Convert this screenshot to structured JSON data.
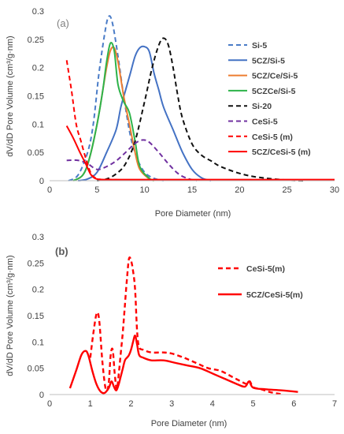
{
  "colors": {
    "si5": "#4a7cc7",
    "cz_si5": "#4472c4",
    "cz_ce_si5": "#ed7d31",
    "czce_si5": "#2db34a",
    "si20": "#111111",
    "cesi5": "#7030a0",
    "red": "#ff0000",
    "axis": "#bfbfbf"
  },
  "chart_data": [
    {
      "type": "line",
      "panel_label": "(a)",
      "xlabel": "Pore Diameter (nm)",
      "ylabel": "dV/dD Pore Volume (cm³/g·nm)",
      "xlim": [
        0,
        30
      ],
      "ylim": [
        0,
        0.3
      ],
      "x_ticks": [
        "0",
        "5",
        "10",
        "15",
        "20",
        "25",
        "30"
      ],
      "y_ticks": [
        "0",
        "0.05",
        "0.1",
        "0.15",
        "0.2",
        "0.25",
        "0.3"
      ],
      "grid": false,
      "legend_position": "right",
      "series": [
        {
          "name": "Si-5",
          "style": "dashed",
          "color_key": "si5",
          "x": [
            2,
            3,
            4,
            4.6,
            5.2,
            5.8,
            6.2,
            6.6,
            7.2,
            7.8,
            8.5,
            9.2,
            10,
            11,
            12
          ],
          "y": [
            0,
            0.01,
            0.05,
            0.1,
            0.19,
            0.26,
            0.29,
            0.28,
            0.22,
            0.15,
            0.08,
            0.04,
            0.015,
            0.004,
            0
          ]
        },
        {
          "name": "5CZ/Si-5",
          "style": "solid",
          "color_key": "cz_si5",
          "x": [
            3,
            4,
            5,
            6,
            7,
            7.5,
            8,
            8.5,
            9,
            9.5,
            10,
            10.5,
            11,
            11.5,
            12,
            13,
            14,
            15,
            16,
            17
          ],
          "y": [
            0,
            0.003,
            0.015,
            0.05,
            0.09,
            0.13,
            0.16,
            0.19,
            0.22,
            0.235,
            0.237,
            0.228,
            0.19,
            0.16,
            0.13,
            0.09,
            0.05,
            0.02,
            0.005,
            0
          ]
        },
        {
          "name": "5CZ/Ce/Si-5",
          "style": "solid",
          "color_key": "cz_ce_si5",
          "x": [
            2.5,
            3.5,
            4.2,
            5,
            5.6,
            6,
            6.4,
            6.8,
            7.2,
            7.8,
            8.4,
            9,
            9.5,
            10.5,
            11
          ],
          "y": [
            0,
            0.01,
            0.04,
            0.1,
            0.16,
            0.2,
            0.23,
            0.235,
            0.21,
            0.15,
            0.1,
            0.05,
            0.02,
            0.003,
            0
          ]
        },
        {
          "name": "5CZCe/Si-5",
          "style": "solid",
          "color_key": "czce_si5",
          "x": [
            2.5,
            3.5,
            4.2,
            5,
            5.6,
            6,
            6.4,
            6.8,
            7.2,
            7.8,
            8.4,
            9,
            9.5,
            10.5,
            11
          ],
          "y": [
            0,
            0.01,
            0.04,
            0.1,
            0.16,
            0.21,
            0.243,
            0.23,
            0.17,
            0.14,
            0.12,
            0.07,
            0.025,
            0.004,
            0
          ]
        },
        {
          "name": "Si-20",
          "style": "dashed",
          "color_key": "si20",
          "x": [
            5,
            6,
            7,
            8,
            9,
            10,
            10.8,
            11.5,
            12,
            12.5,
            13,
            13.5,
            14,
            15,
            16,
            17,
            18,
            20,
            22,
            25,
            27
          ],
          "y": [
            0,
            0.003,
            0.012,
            0.03,
            0.07,
            0.14,
            0.2,
            0.24,
            0.252,
            0.24,
            0.2,
            0.15,
            0.11,
            0.065,
            0.045,
            0.035,
            0.025,
            0.013,
            0.006,
            0.001,
            0
          ]
        },
        {
          "name": "CeSi-5",
          "style": "dashed",
          "color_key": "cesi5",
          "x": [
            1.8,
            3,
            4,
            5,
            6,
            7,
            8,
            9,
            9.8,
            10.5,
            11.5,
            12.5,
            13.5,
            14.5,
            15.5
          ],
          "y": [
            0.036,
            0.036,
            0.03,
            0.02,
            0.025,
            0.035,
            0.05,
            0.066,
            0.072,
            0.068,
            0.05,
            0.03,
            0.013,
            0.004,
            0
          ]
        },
        {
          "name": "CeSi-5 (m)",
          "style": "dashed",
          "color_key": "red",
          "x": [
            1.8,
            2.3,
            2.8,
            3.3,
            3.8,
            4.3,
            4.8,
            5.5,
            6.5,
            8
          ],
          "y": [
            0.213,
            0.16,
            0.1,
            0.07,
            0.04,
            0.015,
            0.005,
            0.002,
            0.002,
            0.001
          ]
        },
        {
          "name": "5CZ/CeSi-5 (m)",
          "style": "solid",
          "color_key": "red",
          "x": [
            1.8,
            2.5,
            3.2,
            3.8,
            4.3,
            4.8,
            5.5,
            7,
            10,
            30
          ],
          "y": [
            0.097,
            0.075,
            0.05,
            0.03,
            0.012,
            0.004,
            0.002,
            0.002,
            0.002,
            0.002
          ]
        }
      ]
    },
    {
      "type": "line",
      "panel_label": "(b)",
      "xlabel": "Pore Diameter (nm)",
      "ylabel": "dV/dD Pore Volume (cm³/g·nm)",
      "xlim": [
        0,
        7
      ],
      "ylim": [
        0,
        0.3
      ],
      "x_ticks": [
        "0",
        "1",
        "2",
        "3",
        "4",
        "5",
        "6",
        "7"
      ],
      "y_ticks": [
        "0",
        "0.05",
        "0.1",
        "0.15",
        "0.2",
        "0.25",
        "0.3"
      ],
      "grid": false,
      "legend_position": "right",
      "series": [
        {
          "name": "CeSi-5(m)",
          "style": "dashed",
          "color_key": "red",
          "x": [
            1.0,
            1.08,
            1.16,
            1.22,
            1.3,
            1.38,
            1.45,
            1.5,
            1.55,
            1.6,
            1.65,
            1.7,
            1.75,
            1.8,
            1.85,
            1.9,
            1.95,
            2.0,
            2.05,
            2.1,
            2.15,
            2.2,
            2.3,
            2.5,
            2.8,
            3.0,
            3.3,
            3.6,
            3.9,
            4.2,
            4.5,
            4.7,
            4.85,
            4.92,
            5.0,
            5.2,
            5.4,
            5.6,
            5.75
          ],
          "y": [
            0.07,
            0.12,
            0.155,
            0.14,
            0.06,
            0.01,
            0.02,
            0.075,
            0.085,
            0.04,
            0.01,
            0.04,
            0.08,
            0.12,
            0.17,
            0.22,
            0.258,
            0.255,
            0.235,
            0.2,
            0.12,
            0.09,
            0.085,
            0.08,
            0.08,
            0.078,
            0.07,
            0.06,
            0.05,
            0.045,
            0.033,
            0.025,
            0.02,
            0.025,
            0.014,
            0.01,
            0.005,
            0.002,
            0
          ]
        },
        {
          "name": "5CZ/CeSi-5(m)",
          "style": "solid",
          "color_key": "red",
          "x": [
            0.5,
            0.65,
            0.78,
            0.88,
            0.95,
            1.05,
            1.15,
            1.25,
            1.35,
            1.45,
            1.52,
            1.58,
            1.64,
            1.7,
            1.75,
            1.8,
            1.85,
            1.9,
            1.95,
            2.0,
            2.05,
            2.1,
            2.15,
            2.2,
            2.3,
            2.5,
            2.8,
            3.1,
            3.4,
            3.7,
            4.0,
            4.3,
            4.6,
            4.8,
            4.9,
            5.0,
            5.3,
            5.7,
            6.1
          ],
          "y": [
            0.012,
            0.045,
            0.075,
            0.083,
            0.075,
            0.045,
            0.02,
            0.006,
            0.003,
            0.012,
            0.025,
            0.015,
            0.008,
            0.02,
            0.035,
            0.05,
            0.065,
            0.07,
            0.075,
            0.085,
            0.1,
            0.112,
            0.095,
            0.075,
            0.07,
            0.065,
            0.065,
            0.06,
            0.055,
            0.05,
            0.04,
            0.03,
            0.02,
            0.015,
            0.025,
            0.013,
            0.01,
            0.008,
            0.005
          ]
        }
      ]
    }
  ]
}
